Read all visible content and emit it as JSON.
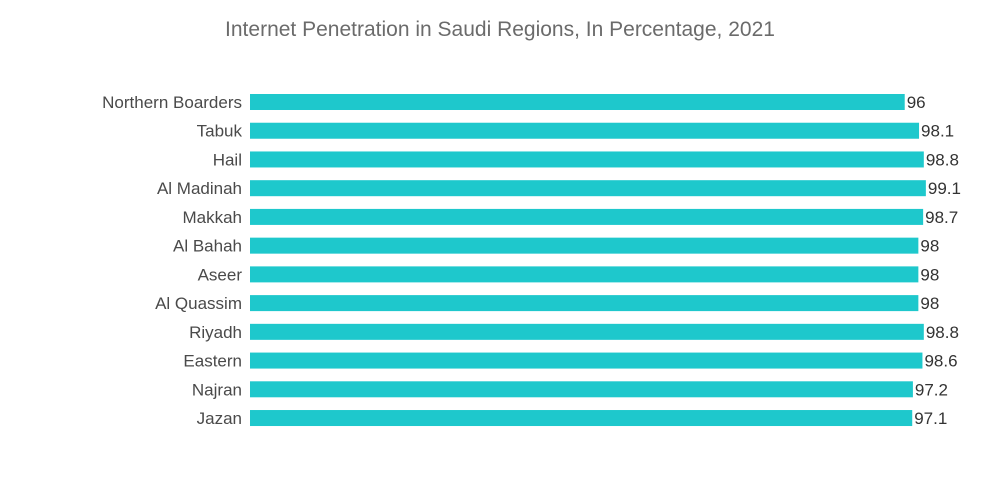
{
  "chart_data": {
    "type": "bar",
    "orientation": "horizontal",
    "title": "Internet Penetration in Saudi Regions, In Percentage, 2021",
    "categories": [
      "Northern Boarders",
      "Tabuk",
      "Hail",
      "Al Madinah",
      "Makkah",
      "Al Bahah",
      "Aseer",
      "Al Quassim",
      "Riyadh",
      "Eastern",
      "Najran",
      "Jazan"
    ],
    "values": [
      96,
      98.1,
      98.8,
      99.1,
      98.7,
      98,
      98,
      98,
      98.8,
      98.6,
      97.2,
      97.1
    ],
    "value_labels": [
      "96",
      "98.1",
      "98.8",
      "99.1",
      "98.7",
      "98",
      "98",
      "98",
      "98.8",
      "98.6",
      "97.2",
      "97.1"
    ],
    "xlim": [
      0,
      100
    ],
    "grid": false,
    "legend": "none",
    "bar_color": "#1ec8cc"
  }
}
